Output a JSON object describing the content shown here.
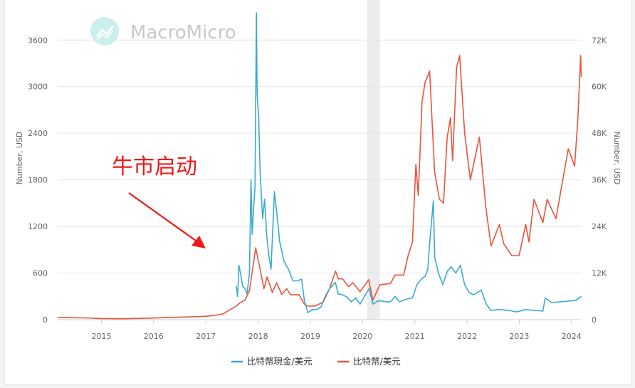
{
  "watermark": {
    "text": "MacroMicro",
    "icon": "macromicro-logo-icon"
  },
  "annotation": {
    "text": "牛市启动",
    "color": "#f01818"
  },
  "colors": {
    "cash": "#3aa9d4",
    "btc": "#e8543a",
    "grid": "#e6e6e6",
    "shade": "#ececec"
  },
  "chart_data": {
    "type": "line",
    "title": "",
    "xlabel": "",
    "x_ticks": [
      "2015",
      "2016",
      "2017",
      "2018",
      "2019",
      "2020",
      "2021",
      "2022",
      "2023",
      "2024"
    ],
    "y_left": {
      "label": "Number, USD",
      "ticks": [
        "0",
        "600",
        "1200",
        "1800",
        "2400",
        "3000",
        "3600"
      ],
      "range": [
        0,
        3960
      ]
    },
    "y_right": {
      "label": "Number, USD",
      "ticks": [
        "0",
        "12K",
        "24K",
        "36K",
        "48K",
        "60K",
        "72K"
      ],
      "range": [
        0,
        79200
      ]
    },
    "shaded_region": [
      "2020-02",
      "2020-05"
    ],
    "grid": true,
    "legend_position": "bottom-center",
    "series": [
      {
        "name": "比特幣現金/美元",
        "axis": "left",
        "color": "#3aa9d4",
        "points": [
          [
            "2017-08-01",
            430
          ],
          [
            "2017-08-10",
            300
          ],
          [
            "2017-08-20",
            700
          ],
          [
            "2017-09-01",
            580
          ],
          [
            "2017-09-15",
            430
          ],
          [
            "2017-10-01",
            400
          ],
          [
            "2017-10-15",
            330
          ],
          [
            "2017-11-01",
            600
          ],
          [
            "2017-11-12",
            1800
          ],
          [
            "2017-11-20",
            1100
          ],
          [
            "2017-12-01",
            1450
          ],
          [
            "2017-12-10",
            1700
          ],
          [
            "2017-12-20",
            3950
          ],
          [
            "2017-12-25",
            2900
          ],
          [
            "2018-01-05",
            2600
          ],
          [
            "2018-01-15",
            1900
          ],
          [
            "2018-02-01",
            1300
          ],
          [
            "2018-02-15",
            1550
          ],
          [
            "2018-03-01",
            1100
          ],
          [
            "2018-03-15",
            850
          ],
          [
            "2018-04-01",
            650
          ],
          [
            "2018-04-25",
            1650
          ],
          [
            "2018-05-10",
            1400
          ],
          [
            "2018-06-01",
            1000
          ],
          [
            "2018-07-01",
            750
          ],
          [
            "2018-08-01",
            650
          ],
          [
            "2018-09-01",
            500
          ],
          [
            "2018-10-01",
            500
          ],
          [
            "2018-11-01",
            520
          ],
          [
            "2018-11-20",
            250
          ],
          [
            "2018-12-15",
            90
          ],
          [
            "2019-01-15",
            130
          ],
          [
            "2019-02-15",
            130
          ],
          [
            "2019-03-15",
            160
          ],
          [
            "2019-04-15",
            300
          ],
          [
            "2019-05-15",
            400
          ],
          [
            "2019-06-25",
            480
          ],
          [
            "2019-07-15",
            330
          ],
          [
            "2019-08-15",
            320
          ],
          [
            "2019-09-15",
            290
          ],
          [
            "2019-10-15",
            230
          ],
          [
            "2019-11-15",
            280
          ],
          [
            "2019-12-15",
            200
          ],
          [
            "2020-01-15",
            300
          ],
          [
            "2020-02-15",
            400
          ],
          [
            "2020-03-15",
            200
          ],
          [
            "2020-04-15",
            240
          ],
          [
            "2020-05-15",
            240
          ],
          [
            "2020-06-15",
            230
          ],
          [
            "2020-07-15",
            230
          ],
          [
            "2020-08-15",
            300
          ],
          [
            "2020-09-15",
            230
          ],
          [
            "2020-10-15",
            250
          ],
          [
            "2020-11-15",
            270
          ],
          [
            "2020-12-15",
            280
          ],
          [
            "2021-01-15",
            450
          ],
          [
            "2021-02-15",
            520
          ],
          [
            "2021-03-15",
            560
          ],
          [
            "2021-04-01",
            650
          ],
          [
            "2021-04-15",
            1000
          ],
          [
            "2021-05-10",
            1530
          ],
          [
            "2021-05-20",
            800
          ],
          [
            "2021-06-15",
            600
          ],
          [
            "2021-07-15",
            450
          ],
          [
            "2021-08-15",
            620
          ],
          [
            "2021-09-10",
            680
          ],
          [
            "2021-10-15",
            600
          ],
          [
            "2021-11-15",
            700
          ],
          [
            "2021-12-15",
            450
          ],
          [
            "2022-01-15",
            350
          ],
          [
            "2022-02-15",
            320
          ],
          [
            "2022-03-15",
            350
          ],
          [
            "2022-04-10",
            380
          ],
          [
            "2022-05-15",
            200
          ],
          [
            "2022-06-15",
            120
          ],
          [
            "2022-08-15",
            130
          ],
          [
            "2022-10-15",
            120
          ],
          [
            "2022-12-15",
            100
          ],
          [
            "2023-02-15",
            130
          ],
          [
            "2023-04-15",
            120
          ],
          [
            "2023-06-15",
            110
          ],
          [
            "2023-07-01",
            280
          ],
          [
            "2023-08-15",
            220
          ],
          [
            "2023-10-15",
            230
          ],
          [
            "2023-12-15",
            240
          ],
          [
            "2024-02-01",
            250
          ],
          [
            "2024-03-10",
            300
          ]
        ]
      },
      {
        "name": "比特幣/美元",
        "axis": "right",
        "color": "#e8543a",
        "points": [
          [
            "2014-03-01",
            600
          ],
          [
            "2014-06-01",
            500
          ],
          [
            "2014-09-01",
            450
          ],
          [
            "2015-01-01",
            300
          ],
          [
            "2015-06-01",
            240
          ],
          [
            "2015-12-01",
            380
          ],
          [
            "2016-06-01",
            600
          ],
          [
            "2016-12-01",
            800
          ],
          [
            "2017-01-15",
            900
          ],
          [
            "2017-03-01",
            1100
          ],
          [
            "2017-05-01",
            1500
          ],
          [
            "2017-06-15",
            2500
          ],
          [
            "2017-08-01",
            3500
          ],
          [
            "2017-09-01",
            4500
          ],
          [
            "2017-10-01",
            5000
          ],
          [
            "2017-11-01",
            7500
          ],
          [
            "2017-12-15",
            18500
          ],
          [
            "2018-01-15",
            13000
          ],
          [
            "2018-02-10",
            8000
          ],
          [
            "2018-03-05",
            11000
          ],
          [
            "2018-04-10",
            7000
          ],
          [
            "2018-05-10",
            9500
          ],
          [
            "2018-06-15",
            6500
          ],
          [
            "2018-07-20",
            8000
          ],
          [
            "2018-08-15",
            6400
          ],
          [
            "2018-10-15",
            6400
          ],
          [
            "2018-11-20",
            4000
          ],
          [
            "2018-12-15",
            3500
          ],
          [
            "2019-02-01",
            3500
          ],
          [
            "2019-04-01",
            4500
          ],
          [
            "2019-05-15",
            8000
          ],
          [
            "2019-06-26",
            12500
          ],
          [
            "2019-07-15",
            10500
          ],
          [
            "2019-08-15",
            10500
          ],
          [
            "2019-09-25",
            8500
          ],
          [
            "2019-10-26",
            9500
          ],
          [
            "2019-12-15",
            7200
          ],
          [
            "2020-02-13",
            10300
          ],
          [
            "2020-03-13",
            5000
          ],
          [
            "2020-05-01",
            9000
          ],
          [
            "2020-07-15",
            9300
          ],
          [
            "2020-08-15",
            11500
          ],
          [
            "2020-10-15",
            11500
          ],
          [
            "2020-11-15",
            16500
          ],
          [
            "2020-12-15",
            20000
          ],
          [
            "2021-01-08",
            40000
          ],
          [
            "2021-01-25",
            32000
          ],
          [
            "2021-02-20",
            56000
          ],
          [
            "2021-03-13",
            61000
          ],
          [
            "2021-04-14",
            64000
          ],
          [
            "2021-05-19",
            38000
          ],
          [
            "2021-06-22",
            31000
          ],
          [
            "2021-07-20",
            30000
          ],
          [
            "2021-08-15",
            47000
          ],
          [
            "2021-09-07",
            52000
          ],
          [
            "2021-09-22",
            41000
          ],
          [
            "2021-10-20",
            65000
          ],
          [
            "2021-11-10",
            68000
          ],
          [
            "2021-12-15",
            48000
          ],
          [
            "2022-01-24",
            36000
          ],
          [
            "2022-03-28",
            47000
          ],
          [
            "2022-05-12",
            29000
          ],
          [
            "2022-06-18",
            19000
          ],
          [
            "2022-08-15",
            24500
          ],
          [
            "2022-09-15",
            19500
          ],
          [
            "2022-11-10",
            16500
          ],
          [
            "2022-12-31",
            16500
          ],
          [
            "2023-02-15",
            24500
          ],
          [
            "2023-03-10",
            20000
          ],
          [
            "2023-04-14",
            31000
          ],
          [
            "2023-06-15",
            25000
          ],
          [
            "2023-07-15",
            31000
          ],
          [
            "2023-09-15",
            26000
          ],
          [
            "2023-10-25",
            34500
          ],
          [
            "2023-12-10",
            44000
          ],
          [
            "2024-01-23",
            39500
          ],
          [
            "2024-02-15",
            52000
          ],
          [
            "2024-03-05",
            68000
          ],
          [
            "2024-03-10",
            62500
          ]
        ]
      }
    ]
  }
}
